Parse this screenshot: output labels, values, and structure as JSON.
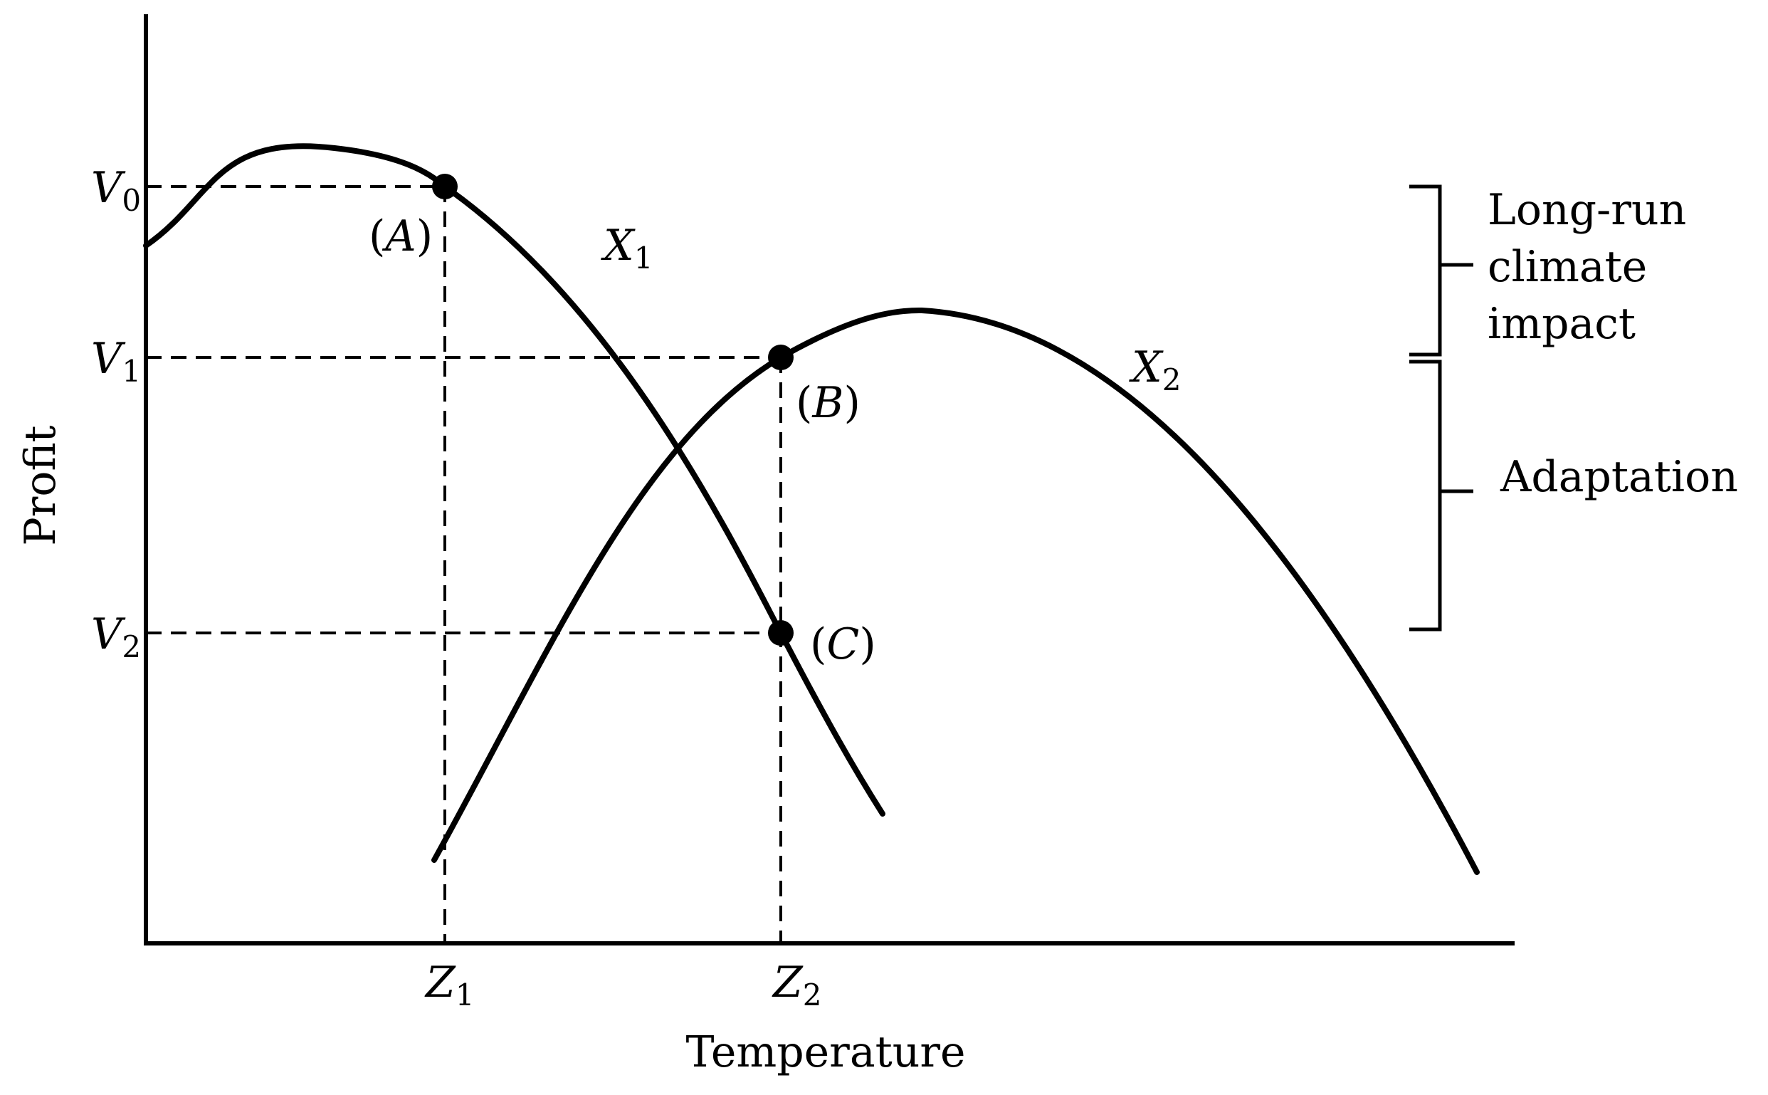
{
  "chart_data": {
    "type": "line",
    "title": "",
    "xlabel": "Temperature",
    "ylabel": "Profit",
    "x_ticks": [
      {
        "key": "Z1",
        "base": "Z",
        "sub": "1"
      },
      {
        "key": "Z2",
        "base": "Z",
        "sub": "2"
      }
    ],
    "y_ticks": [
      {
        "key": "V0",
        "base": "V",
        "sub": "0"
      },
      {
        "key": "V1",
        "base": "V",
        "sub": "1"
      },
      {
        "key": "V2",
        "base": "V",
        "sub": "2"
      }
    ],
    "series": [
      {
        "name": "X1",
        "base": "X",
        "sub": "1"
      },
      {
        "name": "X2",
        "base": "X",
        "sub": "2"
      }
    ],
    "points": [
      {
        "label": "(A)",
        "letter": "A",
        "x": "Z1",
        "y": "V0",
        "series": "X1"
      },
      {
        "label": "(B)",
        "letter": "B",
        "x": "Z2",
        "y": "V1",
        "series": "X2"
      },
      {
        "label": "(C)",
        "letter": "C",
        "x": "Z2",
        "y": "V2",
        "series": "X1"
      }
    ],
    "annotations": [
      {
        "text": "Long-run climate impact",
        "lines": [
          "Long-run",
          "climate",
          "impact"
        ],
        "from": "V0",
        "to": "V1"
      },
      {
        "text": "Adaptation",
        "lines": [
          "Adaptation"
        ],
        "from": "V1",
        "to": "V2"
      }
    ],
    "grid": false,
    "legend": "none"
  }
}
